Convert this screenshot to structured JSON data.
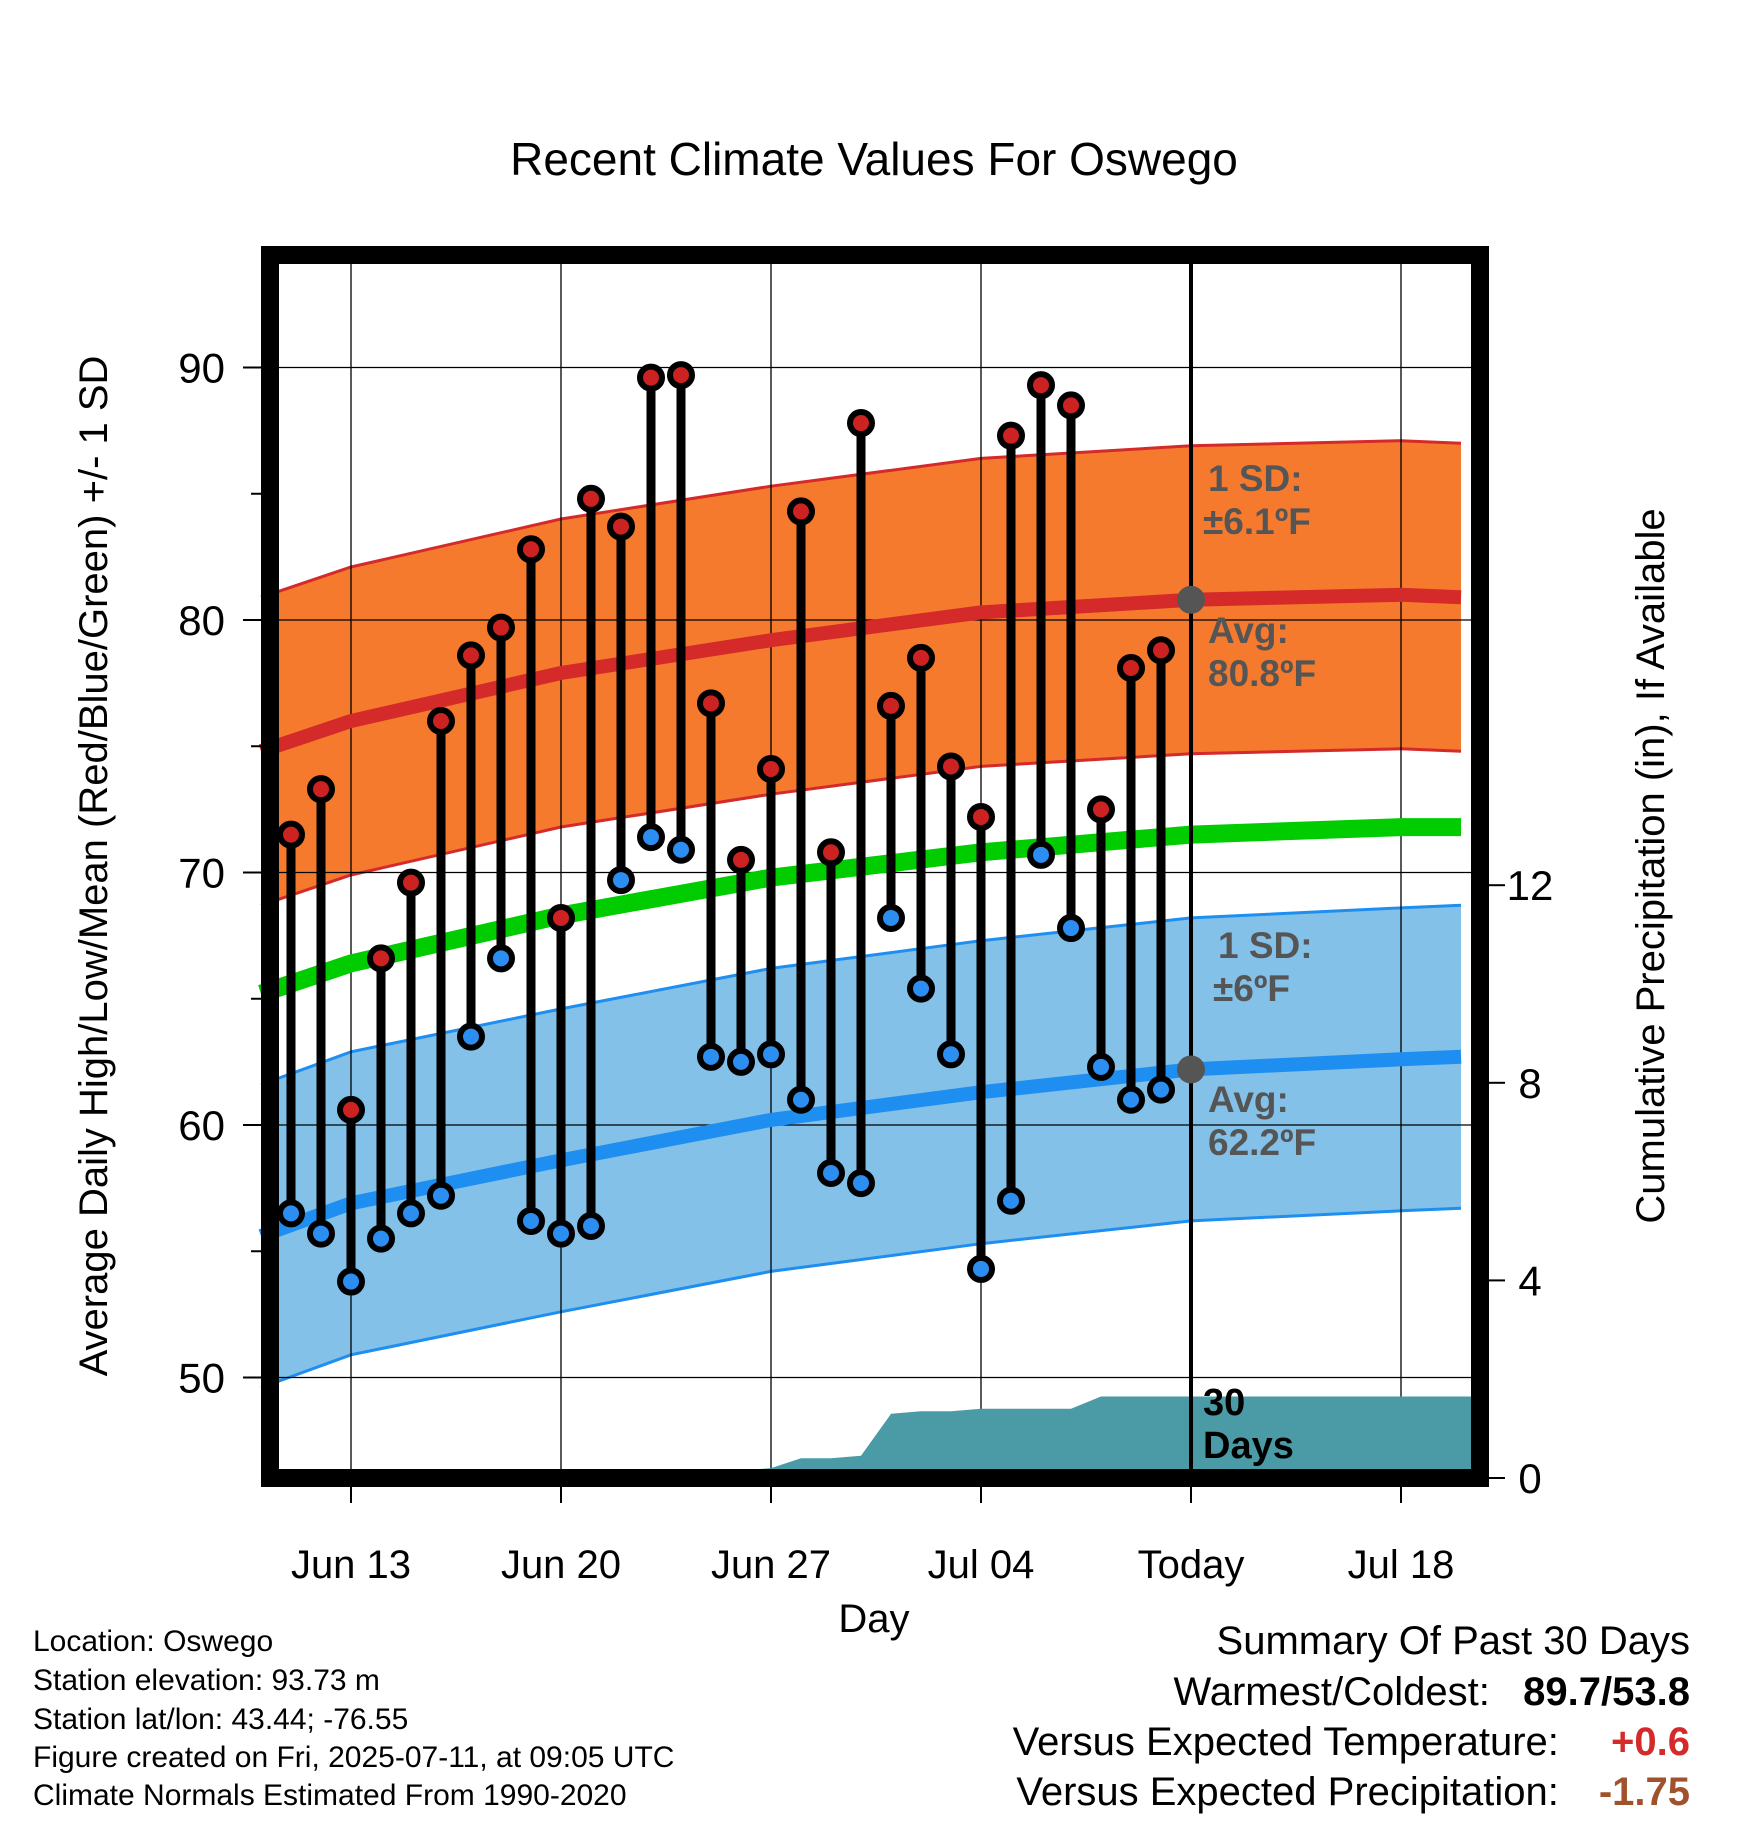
{
  "chart_data": {
    "type": "line",
    "title": "Recent Climate Values For Oswego",
    "xlabel": "Day",
    "ylabel": "Average Daily High/Low/Mean (Red/Blue/Green) +/- 1 SD",
    "y2label": "Cumulative Precipitation (in), If Available",
    "ylim": [
      45.4,
      93.0
    ],
    "y2lim": [
      0,
      23.9
    ],
    "xlim_days_from_jun13": [
      -3.2,
      37.5
    ],
    "grid": true,
    "x_ticks": [
      {
        "label": "Jun 13",
        "day": 0
      },
      {
        "label": "Jun 20",
        "day": 7
      },
      {
        "label": "Jun 27",
        "day": 14
      },
      {
        "label": "Jul 04",
        "day": 21
      },
      {
        "label": "Today",
        "day": 28
      },
      {
        "label": "Jul 18",
        "day": 35
      }
    ],
    "y_ticks": [
      50,
      60,
      70,
      80,
      90
    ],
    "y2_ticks": [
      0,
      4,
      8,
      12
    ],
    "daily": {
      "days": [
        -2,
        -1,
        0,
        1,
        2,
        3,
        4,
        5,
        6,
        7,
        8,
        9,
        10,
        11,
        12,
        13,
        14,
        15,
        16,
        17,
        18,
        19,
        20,
        21,
        22,
        23,
        24,
        25,
        26,
        27
      ],
      "highs": [
        71.5,
        73.3,
        60.6,
        66.6,
        69.6,
        76.0,
        78.6,
        79.7,
        82.8,
        68.2,
        84.8,
        83.7,
        89.6,
        89.7,
        76.7,
        70.5,
        74.1,
        84.3,
        70.8,
        87.8,
        76.6,
        78.5,
        74.2,
        72.2,
        87.3,
        89.3,
        88.5,
        72.5,
        78.1,
        78.8
      ],
      "lows": [
        56.5,
        55.7,
        53.8,
        55.5,
        56.5,
        57.2,
        63.5,
        66.6,
        56.2,
        55.7,
        56.0,
        69.7,
        71.4,
        70.9,
        62.7,
        62.5,
        62.8,
        61.0,
        58.1,
        57.7,
        68.2,
        65.4,
        62.8,
        54.3,
        57.0,
        70.7,
        67.8,
        62.3,
        61.0,
        61.4
      ]
    },
    "normals": {
      "days": [
        -3,
        0,
        7,
        14,
        21,
        28,
        35,
        37
      ],
      "high_avg": [
        74.8,
        76.0,
        77.9,
        79.2,
        80.3,
        80.8,
        81.0,
        80.9
      ],
      "low_avg": [
        55.6,
        56.9,
        58.6,
        60.2,
        61.3,
        62.2,
        62.6,
        62.7
      ],
      "mean_avg": [
        65.2,
        66.4,
        68.3,
        69.8,
        70.8,
        71.5,
        71.8,
        71.8
      ],
      "high_sd": 6.1,
      "low_sd": 6.0
    },
    "precipitation": {
      "days": [
        -3,
        11.3,
        12,
        13,
        14,
        15,
        16,
        17,
        18,
        19,
        20,
        21,
        22,
        23,
        24,
        25,
        26,
        27,
        37.5
      ],
      "cumulative": [
        0,
        0,
        0.12,
        0.15,
        0.2,
        0.4,
        0.4,
        0.45,
        1.3,
        1.35,
        1.35,
        1.4,
        1.4,
        1.4,
        1.4,
        1.65,
        1.65,
        1.65,
        1.65
      ]
    },
    "today_markers": {
      "high_avg": 80.8,
      "low_avg": 62.2
    },
    "annotations": {
      "high_sd_label": "1 SD:",
      "high_sd_value": "±6.1ºF",
      "high_avg_label": "Avg:",
      "high_avg_value": "80.8ºF",
      "low_sd_label": "1 SD:",
      "low_sd_value": "±6ºF",
      "low_avg_label": "Avg:",
      "low_avg_value": "62.2ºF",
      "precip_days_1": "30",
      "precip_days_2": "Days"
    },
    "colors": {
      "high_band": "#f57a2e",
      "high_line": "#d42a2a",
      "low_band": "#83c1e8",
      "low_line": "#1e8ff0",
      "mean_line": "#00cc00",
      "precip_fill": "#4a9ba5",
      "high_dot": "#cc2222",
      "low_dot": "#2b8ef0",
      "annotation_text": "#555555",
      "today_marker": "#555555"
    }
  },
  "info": {
    "location": "Location: Oswego",
    "elevation": "Station elevation: 93.73 m",
    "latlon": "Station lat/lon: 43.44; -76.55",
    "created": "Figure created on Fri, 2025-07-11, at 09:05 UTC",
    "normals": "Climate Normals Estimated From 1990-2020"
  },
  "summary": {
    "title": "Summary Of Past 30 Days",
    "warmest_coldest_label": "Warmest/Coldest:",
    "warmest": "89.7",
    "slash": "/",
    "coldest": "53.8",
    "temp_label": "Versus Expected Temperature:",
    "temp_value": "+0.6",
    "temp_color": "#d42a2a",
    "precip_label": "Versus Expected Precipitation:",
    "precip_value": "-1.75",
    "precip_color": "#a0522d"
  }
}
